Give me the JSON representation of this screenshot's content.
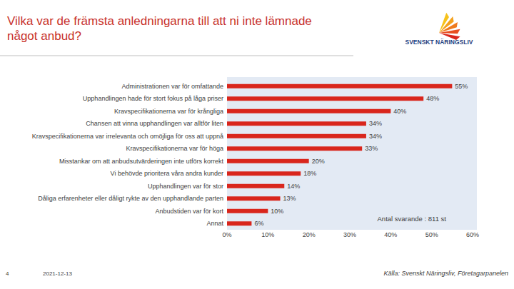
{
  "chart_data": {
    "type": "bar",
    "orientation": "horizontal",
    "title": "Vilka var de främsta anledningarna till att ni inte lämnade något anbud?",
    "categories": [
      "Administrationen var för omfattande",
      "Upphandlingen hade för stort fokus på låga priser",
      "Kravspecifikationerna var för krångliga",
      "Chansen att vinna upphandlingen var alltför liten",
      "Kravspecifikationerna var irrelevanta och omöjliga för oss att uppnå",
      "Kravspecifikationerna var för höga",
      "Misstankar om att anbudsutvärderingen inte utförs korrekt",
      "Vi behövde prioritera våra andra kunder",
      "Upphandlingen var för stor",
      "Dåliga erfarenheter eller dåligt rykte av den upphandlande parten",
      "Anbudstiden var för kort",
      "Annat"
    ],
    "values": [
      55,
      48,
      40,
      34,
      34,
      33,
      20,
      18,
      14,
      13,
      10,
      6
    ],
    "value_labels": [
      "55%",
      "48%",
      "40%",
      "34%",
      "34%",
      "33%",
      "20%",
      "18%",
      "14%",
      "13%",
      "10%",
      "6%"
    ],
    "color": "#d9261c",
    "xlim": [
      0,
      60
    ],
    "xticks": [
      {
        "value": 0,
        "label": "0%"
      },
      {
        "value": 10,
        "label": "10%"
      },
      {
        "value": 20,
        "label": "20%"
      },
      {
        "value": 30,
        "label": "30%"
      },
      {
        "value": 40,
        "label": "40%"
      },
      {
        "value": 50,
        "label": "50%"
      },
      {
        "value": 60,
        "label": "60%"
      }
    ],
    "data_labels": true,
    "grid": false,
    "annotation": "Antal svarande : 811 st"
  },
  "page": {
    "logo": "SVENSKT NÄRINGSLIV",
    "page_number": "4",
    "date": "2021-12-13",
    "source": "Källa: Svenskt Näringsliv, Företagarpanelen"
  }
}
